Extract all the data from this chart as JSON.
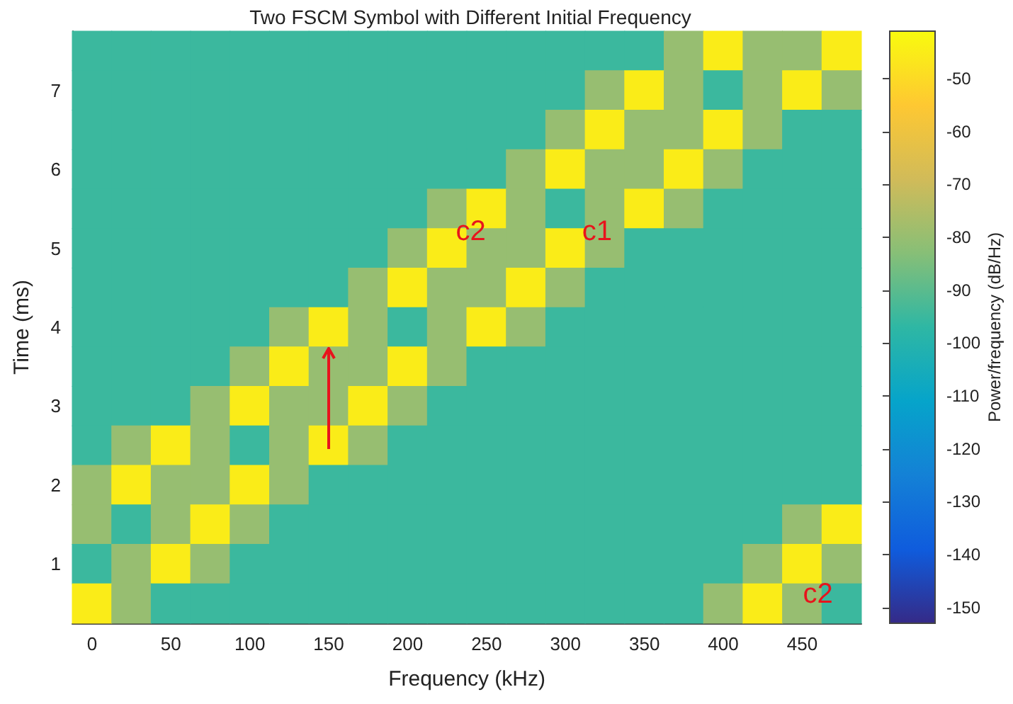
{
  "chart_data": {
    "type": "heatmap",
    "title": "Two FSCM Symbol with Different Initial Frequency",
    "xlabel": "Frequency (kHz)",
    "ylabel": "Time (ms)",
    "clabel": "Power/frequency (dB/Hz)",
    "categories": [
      "0",
      null,
      "50",
      null,
      "100",
      null,
      "150",
      null,
      "200",
      null,
      "250",
      null,
      "300",
      null,
      "350",
      null,
      "400",
      null,
      "450",
      null
    ],
    "y_categories": [
      null,
      "7",
      null,
      "6",
      null,
      "5",
      null,
      "4",
      null,
      "3",
      null,
      "2",
      null,
      "1",
      null
    ],
    "cells": [
      [
        -95,
        -95,
        -95,
        -95,
        -95,
        -95,
        -95,
        -95,
        -95,
        -95,
        -95,
        -95,
        -95,
        -95,
        -95,
        -80,
        -45,
        -80,
        -80,
        -45
      ],
      [
        -95,
        -95,
        -95,
        -95,
        -95,
        -95,
        -95,
        -95,
        -95,
        -95,
        -95,
        -95,
        -95,
        -80,
        -45,
        -80,
        -95,
        -80,
        -45,
        -80
      ],
      [
        -95,
        -95,
        -95,
        -95,
        -95,
        -95,
        -95,
        -95,
        -95,
        -95,
        -95,
        -95,
        -80,
        -45,
        -80,
        -80,
        -45,
        -80,
        -95,
        -95
      ],
      [
        -95,
        -95,
        -95,
        -95,
        -95,
        -95,
        -95,
        -95,
        -95,
        -95,
        -95,
        -80,
        -45,
        -80,
        -80,
        -45,
        -80,
        -95,
        -95,
        -95
      ],
      [
        -95,
        -95,
        -95,
        -95,
        -95,
        -95,
        -95,
        -95,
        -95,
        -80,
        -45,
        -80,
        -95,
        -80,
        -45,
        -80,
        -95,
        -95,
        -95,
        -95
      ],
      [
        -95,
        -95,
        -95,
        -95,
        -95,
        -95,
        -95,
        -95,
        -80,
        -45,
        -80,
        -80,
        -45,
        -80,
        -95,
        -95,
        -95,
        -95,
        -95,
        -95
      ],
      [
        -95,
        -95,
        -95,
        -95,
        -95,
        -95,
        -95,
        -80,
        -45,
        -80,
        -80,
        -45,
        -80,
        -95,
        -95,
        -95,
        -95,
        -95,
        -95,
        -95
      ],
      [
        -95,
        -95,
        -95,
        -95,
        -95,
        -80,
        -45,
        -80,
        -95,
        -80,
        -45,
        -80,
        -95,
        -95,
        -95,
        -95,
        -95,
        -95,
        -95,
        -95
      ],
      [
        -95,
        -95,
        -95,
        -95,
        -80,
        -45,
        -80,
        -80,
        -45,
        -80,
        -95,
        -95,
        -95,
        -95,
        -95,
        -95,
        -95,
        -95,
        -95,
        -95
      ],
      [
        -95,
        -95,
        -95,
        -80,
        -45,
        -80,
        -80,
        -45,
        -80,
        -95,
        -95,
        -95,
        -95,
        -95,
        -95,
        -95,
        -95,
        -95,
        -95,
        -95
      ],
      [
        -95,
        -80,
        -45,
        -80,
        -95,
        -80,
        -45,
        -80,
        -95,
        -95,
        -95,
        -95,
        -95,
        -95,
        -95,
        -95,
        -95,
        -95,
        -95,
        -95
      ],
      [
        -80,
        -45,
        -80,
        -80,
        -45,
        -80,
        -95,
        -95,
        -95,
        -95,
        -95,
        -95,
        -95,
        -95,
        -95,
        -95,
        -95,
        -95,
        -95,
        -95
      ],
      [
        -80,
        -95,
        -80,
        -45,
        -80,
        -95,
        -95,
        -95,
        -95,
        -95,
        -95,
        -95,
        -95,
        -95,
        -95,
        -95,
        -95,
        -95,
        -80,
        -45
      ],
      [
        -95,
        -80,
        -45,
        -80,
        -95,
        -95,
        -95,
        -95,
        -95,
        -95,
        -95,
        -95,
        -95,
        -95,
        -95,
        -95,
        -95,
        -80,
        -45,
        -80
      ],
      [
        -45,
        -80,
        -95,
        -95,
        -95,
        -95,
        -95,
        -95,
        -95,
        -95,
        -95,
        -95,
        -95,
        -95,
        -95,
        -95,
        -80,
        -45,
        -80,
        -95
      ]
    ],
    "clim": [
      -153,
      -41
    ],
    "cticks": [
      -150,
      -140,
      -130,
      -120,
      -110,
      -100,
      -90,
      -80,
      -70,
      -60,
      -50
    ],
    "annotations": [
      "c2",
      "c1",
      "c2"
    ]
  }
}
